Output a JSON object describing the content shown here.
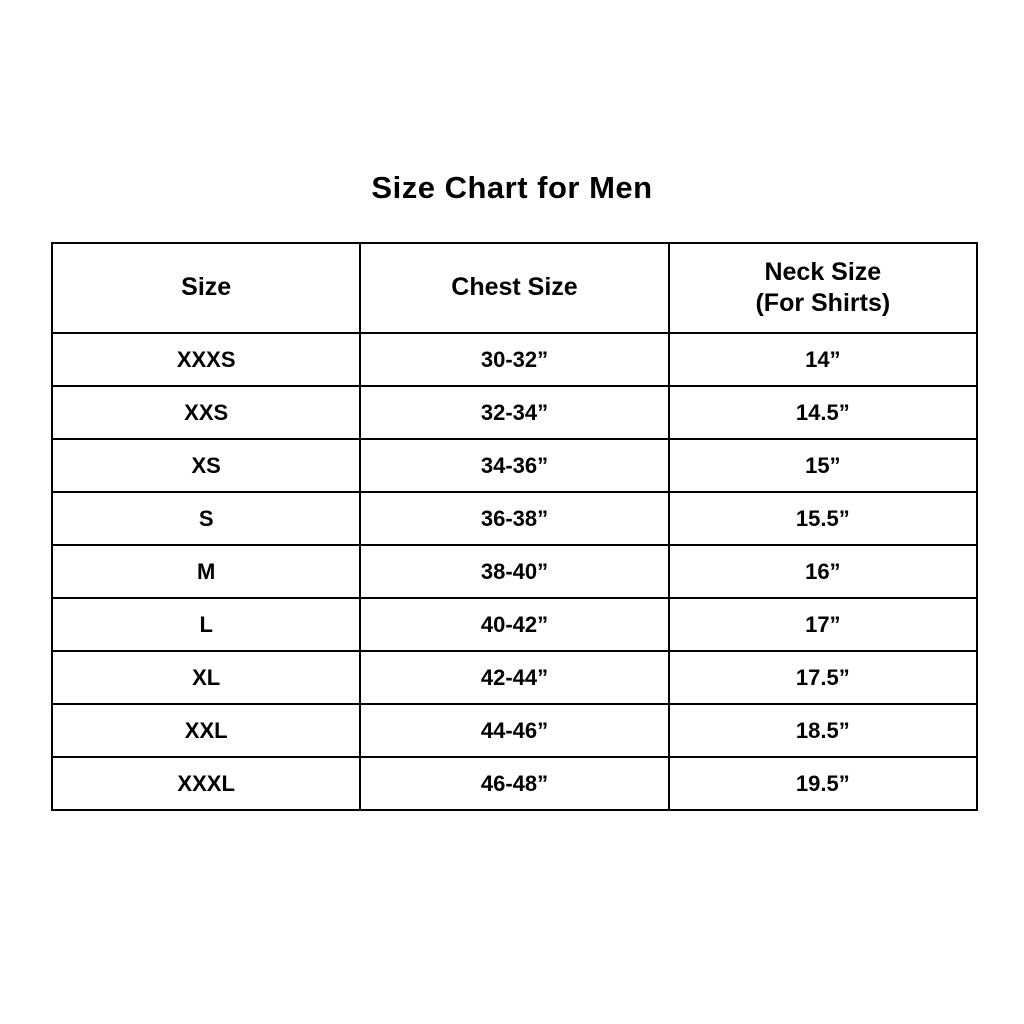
{
  "title": "Size Chart for Men",
  "table": {
    "headers": [
      {
        "label": "Size",
        "sublabel": ""
      },
      {
        "label": "Chest Size",
        "sublabel": ""
      },
      {
        "label": "Neck Size",
        "sublabel": "(For Shirts)"
      }
    ],
    "rows": [
      {
        "size": "XXXS",
        "chest": "30-32”",
        "neck": "14”"
      },
      {
        "size": "XXS",
        "chest": "32-34”",
        "neck": "14.5”"
      },
      {
        "size": "XS",
        "chest": "34-36”",
        "neck": "15”"
      },
      {
        "size": "S",
        "chest": "36-38”",
        "neck": "15.5”"
      },
      {
        "size": "M",
        "chest": "38-40”",
        "neck": "16”"
      },
      {
        "size": "L",
        "chest": "40-42”",
        "neck": "17”"
      },
      {
        "size": "XL",
        "chest": "42-44”",
        "neck": "17.5”"
      },
      {
        "size": "XXL",
        "chest": "44-46”",
        "neck": "18.5”"
      },
      {
        "size": "XXXL",
        "chest": "46-48”",
        "neck": "19.5”"
      }
    ]
  }
}
